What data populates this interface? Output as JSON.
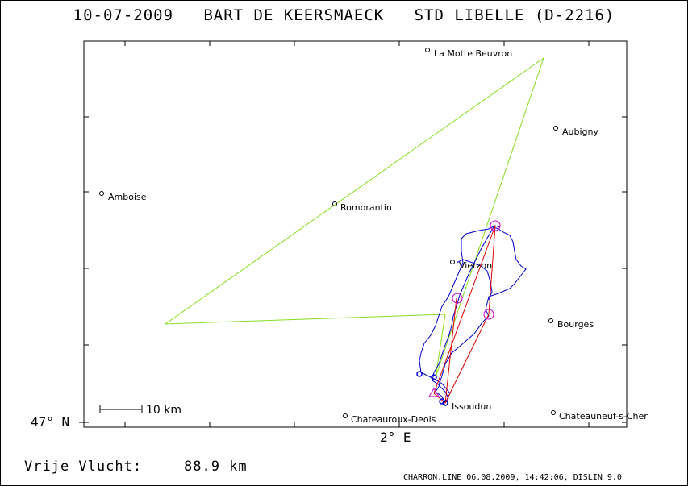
{
  "header": {
    "date": "10-07-2009",
    "pilot": "BART DE KEERSMAECK",
    "glider": "STD LIBELLE (D-2216)"
  },
  "map": {
    "lat_label": "47° N",
    "lon_label": "2° E",
    "scale_label": "10 km",
    "colors": {
      "track": "#0000cc",
      "declared_task": "#88dd22",
      "scored_route": "#dd0000",
      "turnpoint_marker": "#cc00cc",
      "frame": "#000000"
    },
    "towns": [
      {
        "name": "La Motte Beuvron"
      },
      {
        "name": "Aubigny"
      },
      {
        "name": "Amboise"
      },
      {
        "name": "Romorantin"
      },
      {
        "name": "Vierzon"
      },
      {
        "name": "Bourges"
      },
      {
        "name": "Issoudun"
      },
      {
        "name": "Chateauroux-Deols"
      },
      {
        "name": "Chateauneuf-s-Cher"
      }
    ]
  },
  "result": {
    "label": "Vrije Vlucht:",
    "distance": "88.9 km"
  },
  "footer": {
    "text": "CHARRON.LINE 06.08.2009, 14:42:06, DISLIN 9.0"
  }
}
